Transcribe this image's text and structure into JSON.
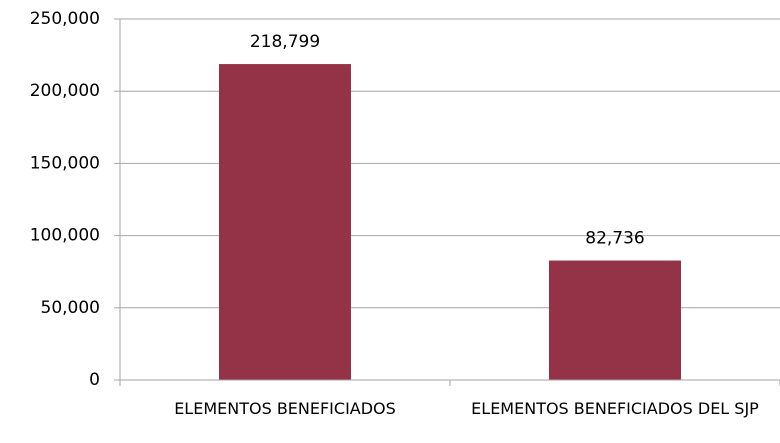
{
  "chart_data": {
    "type": "bar",
    "categories": [
      "ELEMENTOS BENEFICIADOS",
      "ELEMENTOS BENEFICIADOS DEL SJP"
    ],
    "values": [
      218799,
      82736
    ],
    "value_labels": [
      "218,799",
      "82,736"
    ],
    "color": "#943347",
    "ylim": [
      0,
      250000
    ],
    "yticks": [
      0,
      {
        "value": 50000,
        "label": "50,000"
      },
      {
        "value": 100000,
        "label": "100,000"
      },
      {
        "value": 150000,
        "label": "150,000"
      },
      {
        "value": 200000,
        "label": "200,000"
      },
      {
        "value": 250000,
        "label": "250,000"
      }
    ],
    "grid": true
  }
}
